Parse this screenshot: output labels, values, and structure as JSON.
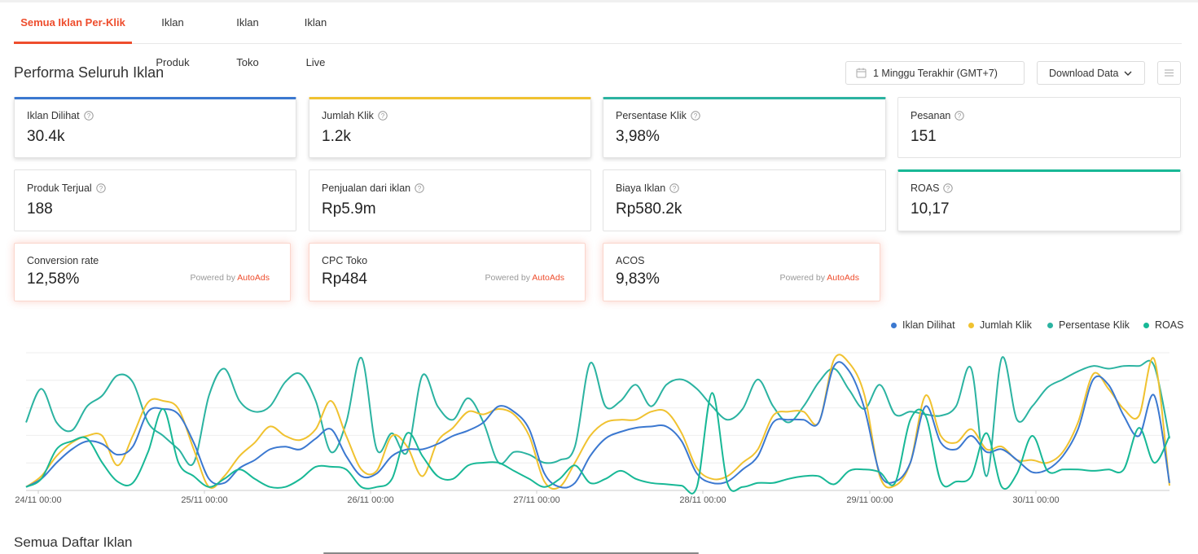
{
  "tabs": [
    {
      "label": "Semua Iklan Per-Klik",
      "active": true
    },
    {
      "label": "Iklan Produk",
      "active": false
    },
    {
      "label": "Iklan Toko",
      "active": false
    },
    {
      "label": "Iklan Live",
      "active": false
    }
  ],
  "header": {
    "title": "Performa Seluruh Iklan",
    "date_range": "1 Minggu Terakhir (GMT+7)",
    "download_label": "Download Data",
    "calendar_icon": "calendar-icon",
    "chevron_icon": "chevron-down-icon",
    "menu_icon": "list-menu-icon"
  },
  "metrics": [
    {
      "label": "Iklan Dilihat",
      "value": "30.4k",
      "selected": true,
      "color": "#2e74d1"
    },
    {
      "label": "Jumlah Klik",
      "value": "1.2k",
      "selected": true,
      "color": "#f0c230"
    },
    {
      "label": "Persentase Klik",
      "value": "3,98%",
      "selected": true,
      "color": "#2bb3a1"
    },
    {
      "label": "Pesanan",
      "value": "151",
      "selected": false
    },
    {
      "label": "Produk Terjual",
      "value": "188",
      "selected": false
    },
    {
      "label": "Penjualan dari iklan",
      "value": "Rp5.9m",
      "selected": false
    },
    {
      "label": "Biaya Iklan",
      "value": "Rp580.2k",
      "selected": false
    },
    {
      "label": "ROAS",
      "value": "10,17",
      "selected": true,
      "color": "#18b896"
    }
  ],
  "autoads": {
    "powered_text": "Powered by",
    "brand": "AutoAds",
    "cards": [
      {
        "label": "Conversion rate",
        "value": "12,58%"
      },
      {
        "label": "CPC Toko",
        "value": "Rp484"
      },
      {
        "label": "ACOS",
        "value": "9,83%"
      }
    ]
  },
  "chart_data": {
    "type": "line",
    "x_labels": [
      "24/11 00:00",
      "25/11 00:00",
      "26/11 00:00",
      "27/11 00:00",
      "28/11 00:00",
      "29/11 00:00",
      "30/11 00:00"
    ],
    "grid": true,
    "legend_position": "top-right",
    "series": [
      {
        "name": "Iklan Dilihat",
        "color": "#3b78d0",
        "values": [
          0.02,
          0.08,
          0.2,
          0.3,
          0.36,
          0.34,
          0.26,
          0.32,
          0.58,
          0.6,
          0.56,
          0.35,
          0.08,
          0.05,
          0.16,
          0.22,
          0.3,
          0.32,
          0.3,
          0.38,
          0.45,
          0.25,
          0.1,
          0.12,
          0.25,
          0.3,
          0.3,
          0.34,
          0.4,
          0.44,
          0.5,
          0.62,
          0.58,
          0.45,
          0.12,
          0.02,
          0.05,
          0.25,
          0.38,
          0.43,
          0.46,
          0.47,
          0.47,
          0.36,
          0.12,
          0.05,
          0.06,
          0.15,
          0.25,
          0.5,
          0.52,
          0.52,
          0.5,
          0.92,
          0.88,
          0.6,
          0.12,
          0.06,
          0.2,
          0.62,
          0.35,
          0.3,
          0.4,
          0.28,
          0.3,
          0.22,
          0.13,
          0.15,
          0.25,
          0.45,
          0.82,
          0.78,
          0.55,
          0.4,
          0.7,
          0.05
        ]
      },
      {
        "name": "Jumlah Klik",
        "color": "#f0c230",
        "values": [
          0.02,
          0.1,
          0.25,
          0.35,
          0.4,
          0.4,
          0.18,
          0.4,
          0.65,
          0.66,
          0.6,
          0.3,
          0.02,
          0.1,
          0.25,
          0.35,
          0.47,
          0.4,
          0.37,
          0.45,
          0.66,
          0.4,
          0.15,
          0.14,
          0.4,
          0.32,
          0.1,
          0.36,
          0.46,
          0.58,
          0.56,
          0.6,
          0.56,
          0.4,
          0.06,
          0.02,
          0.2,
          0.4,
          0.5,
          0.52,
          0.52,
          0.58,
          0.58,
          0.42,
          0.16,
          0.08,
          0.1,
          0.2,
          0.3,
          0.55,
          0.58,
          0.58,
          0.5,
          0.97,
          0.94,
          0.7,
          0.1,
          0.03,
          0.2,
          0.7,
          0.4,
          0.35,
          0.45,
          0.3,
          0.32,
          0.22,
          0.22,
          0.2,
          0.28,
          0.5,
          0.86,
          0.75,
          0.6,
          0.55,
          0.97,
          0.03
        ]
      },
      {
        "name": "Persentase Klik",
        "color": "#2bb3a1",
        "values": [
          0.5,
          0.75,
          0.5,
          0.44,
          0.62,
          0.7,
          0.85,
          0.8,
          0.5,
          0.4,
          0.3,
          0.2,
          0.7,
          0.9,
          0.66,
          0.58,
          0.62,
          0.8,
          0.86,
          0.66,
          0.28,
          0.5,
          0.98,
          0.3,
          0.42,
          0.28,
          0.85,
          0.62,
          0.52,
          0.68,
          0.5,
          0.2,
          0.28,
          0.26,
          0.2,
          0.22,
          0.32,
          0.94,
          0.62,
          0.66,
          0.78,
          0.62,
          0.78,
          0.82,
          0.75,
          0.62,
          0.52,
          0.6,
          0.82,
          0.62,
          0.5,
          0.62,
          0.8,
          0.9,
          0.74,
          0.6,
          0.78,
          0.56,
          0.58,
          0.56,
          0.55,
          0.62,
          0.9,
          0.1,
          0.98,
          0.52,
          0.62,
          0.76,
          0.82,
          0.88,
          0.92,
          0.9,
          0.92,
          0.92,
          0.92,
          0.38
        ]
      },
      {
        "name": "ROAS",
        "color": "#18b896",
        "values": [
          0.02,
          0.08,
          0.3,
          0.36,
          0.38,
          0.2,
          0.06,
          0.05,
          0.28,
          0.6,
          0.2,
          0.1,
          0.02,
          0.08,
          0.15,
          0.08,
          0.02,
          0.02,
          0.08,
          0.17,
          0.17,
          0.15,
          0.02,
          0.02,
          0.08,
          0.42,
          0.25,
          0.1,
          0.08,
          0.18,
          0.2,
          0.2,
          0.14,
          0.08,
          0.02,
          0.08,
          0.18,
          0.05,
          0.08,
          0.14,
          0.08,
          0.05,
          0.04,
          0.03,
          0.02,
          0.72,
          0.05,
          0.02,
          0.05,
          0.05,
          0.08,
          0.1,
          0.1,
          0.04,
          0.14,
          0.15,
          0.13,
          0.05,
          0.52,
          0.55,
          0.06,
          0.06,
          0.1,
          0.42,
          0.02,
          0.12,
          0.4,
          0.14,
          0.15,
          0.15,
          0.14,
          0.15,
          0.15,
          0.46,
          0.2,
          0.4
        ]
      }
    ]
  }
}
